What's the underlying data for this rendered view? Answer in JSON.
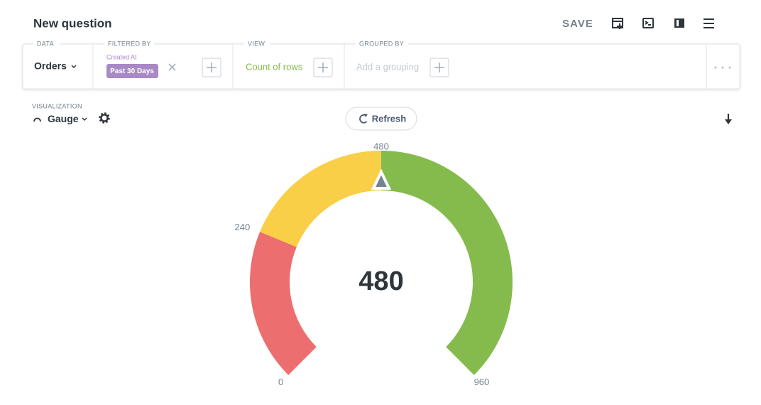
{
  "header": {
    "title": "New question",
    "save": "SAVE"
  },
  "query": {
    "data": {
      "label": "DATA",
      "table": "Orders"
    },
    "filter": {
      "label": "FILTERED BY",
      "field": "Created At",
      "value": "Past 30 Days"
    },
    "view": {
      "label": "VIEW",
      "value": "Count of rows"
    },
    "group": {
      "label": "GROUPED BY",
      "placeholder": "Add a grouping"
    }
  },
  "visualization": {
    "label": "VISUALIZATION",
    "type": "Gauge",
    "refresh": "Refresh"
  },
  "chart_data": {
    "type": "gauge",
    "value": 480,
    "needle_color": "#74838F",
    "segments": [
      {
        "min": 0,
        "max": 240,
        "color": "#ED6E6E"
      },
      {
        "min": 240,
        "max": 480,
        "color": "#F9CF48"
      },
      {
        "min": 480,
        "max": 960,
        "color": "#84BB4C"
      }
    ]
  }
}
